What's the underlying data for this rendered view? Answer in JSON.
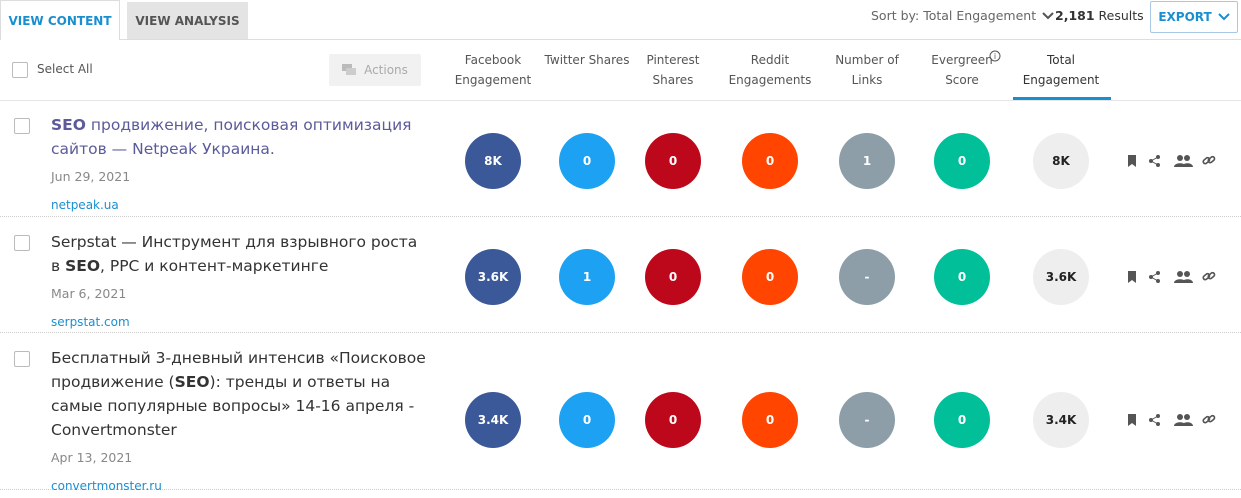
{
  "tabs": [
    "VIEW CONTENT",
    "VIEW ANALYSIS"
  ],
  "sort_label": "Sort by: Total Engagement",
  "results_count": "2,181",
  "results_label": "Results",
  "export": "EXPORT",
  "select_all": "Select All",
  "actions": "Actions",
  "search_term": "SEO",
  "columns": [
    {
      "label": "Facebook Engagement",
      "color": "#3b5998",
      "text_color": "#ffffff"
    },
    {
      "label": "Twitter Shares",
      "color": "#1da1f2",
      "text_color": "#ffffff"
    },
    {
      "label": "Pinterest Shares",
      "color": "#bd081c",
      "text_color": "#ffffff"
    },
    {
      "label": "Reddit Engagements",
      "color": "#ff4500",
      "text_color": "#ffffff"
    },
    {
      "label": "Number of Links",
      "color": "#8d9ea8",
      "text_color": "#ffffff"
    },
    {
      "label": "Evergreen Score",
      "color": "#00bf99",
      "text_color": "#ffffff"
    },
    {
      "label": "Total Engagement",
      "color": "#eeeeee",
      "text_color": "#222222"
    }
  ],
  "rows": [
    {
      "title": "SEO продвижение, поисковая оптимизация сайтов — Netpeak Украина.",
      "visited": true,
      "date": "Jun 29, 2021",
      "domain": "netpeak.ua",
      "metrics": [
        "8K",
        "0",
        "0",
        "0",
        "1",
        "0",
        "8K"
      ]
    },
    {
      "title": "Serpstat — Инструмент для взрывного роста в SEO, PPC и контент-маркетинге",
      "visited": false,
      "date": "Mar 6, 2021",
      "domain": "serpstat.com",
      "metrics": [
        "3.6K",
        "1",
        "0",
        "0",
        "-",
        "0",
        "3.6K"
      ]
    },
    {
      "title": "Бесплатный 3-дневный интенсив «Поисковое продвижение (SEO): тренды и ответы на самые популярные вопросы» 14-16 апреля - Convertmonster",
      "visited": false,
      "date": "Apr 13, 2021",
      "domain": "convertmonster.ru",
      "metrics": [
        "3.4K",
        "0",
        "0",
        "0",
        "-",
        "0",
        "3.4K"
      ]
    }
  ]
}
